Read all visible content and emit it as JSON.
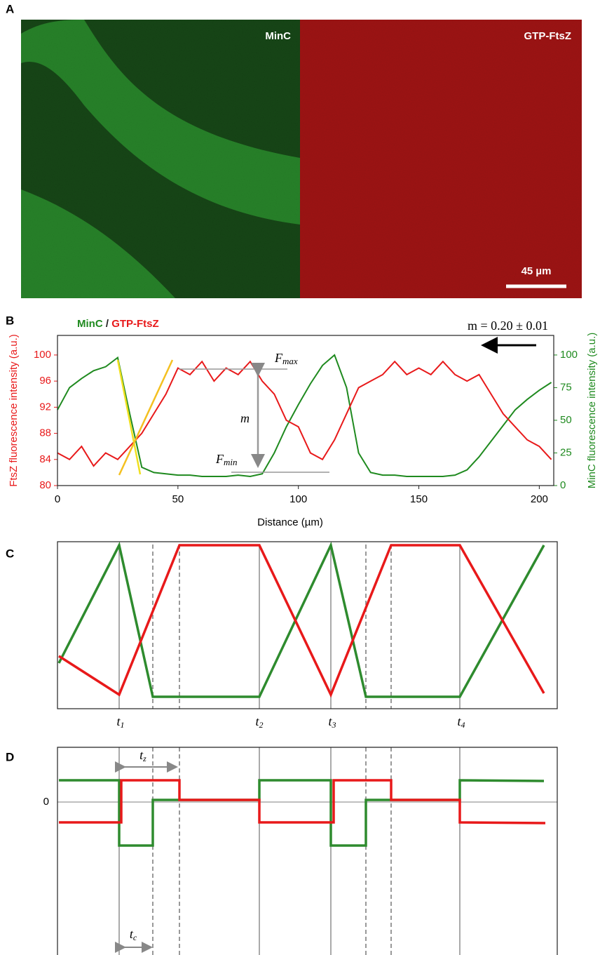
{
  "panel_labels": [
    "A",
    "B",
    "C",
    "D"
  ],
  "panel_a": {
    "left_label": "MinC",
    "right_label": "GTP-FtsZ",
    "scale_bar": "45 µm"
  },
  "chart_data": {
    "type": "line",
    "legend_separator": "/",
    "annotation": "m = 0.20 ± 0.01",
    "f_max": {
      "symbol": "F",
      "subscript": "max"
    },
    "f_min": {
      "symbol": "F",
      "subscript": "min"
    },
    "m_label": "m",
    "xlabel": "Distance (µm)",
    "ylabel": "FtsZ fluorescence intensity (a.u.)",
    "y2label": "MinC fluorescence intensity (a.u.)",
    "xlim": [
      0,
      206
    ],
    "xticks": [
      0,
      50,
      100,
      150,
      200
    ],
    "ylim": [
      80,
      103
    ],
    "yticks": [
      80,
      84,
      88,
      92,
      96,
      100
    ],
    "y2lim": [
      0,
      115
    ],
    "y2ticks": [
      0,
      25,
      50,
      75,
      100
    ],
    "x": [
      0,
      5,
      10,
      15,
      20,
      25,
      30,
      35,
      40,
      45,
      50,
      55,
      60,
      65,
      70,
      75,
      80,
      85,
      90,
      95,
      100,
      105,
      110,
      115,
      120,
      125,
      130,
      135,
      140,
      145,
      150,
      155,
      160,
      165,
      170,
      175,
      180,
      185,
      190,
      195,
      200,
      205
    ],
    "series": [
      {
        "name": "MinC",
        "color": "#1f8a1f",
        "axis": "y2",
        "values": [
          58,
          75,
          82,
          88,
          91,
          98,
          55,
          14,
          10,
          9,
          8,
          8,
          7,
          7,
          7,
          8,
          7,
          9,
          25,
          45,
          62,
          78,
          92,
          100,
          75,
          25,
          10,
          8,
          8,
          7,
          7,
          7,
          7,
          8,
          12,
          22,
          34,
          46,
          58,
          66,
          73,
          79
        ]
      },
      {
        "name": "GTP-FtsZ",
        "color": "#e8191a",
        "values": [
          85,
          84,
          86,
          83,
          85,
          84,
          86,
          88,
          91,
          94,
          98,
          97,
          99,
          96,
          98,
          97,
          99,
          96,
          94,
          90,
          89,
          85,
          84,
          87,
          91,
          95,
          96,
          97,
          99,
          97,
          98,
          97,
          99,
          97,
          96,
          97,
          94,
          91,
          89,
          87,
          86,
          84
        ]
      }
    ]
  },
  "panel_c": {
    "time_labels": [
      {
        "symbol": "t",
        "subscript": "1"
      },
      {
        "symbol": "t",
        "subscript": "2"
      },
      {
        "symbol": "t",
        "subscript": "3"
      },
      {
        "symbol": "t",
        "subscript": "4"
      }
    ]
  },
  "panel_d": {
    "zero_label": "0",
    "t_z": {
      "symbol": "t",
      "subscript": "z"
    },
    "t_c": {
      "symbol": "t",
      "subscript": "c"
    }
  }
}
